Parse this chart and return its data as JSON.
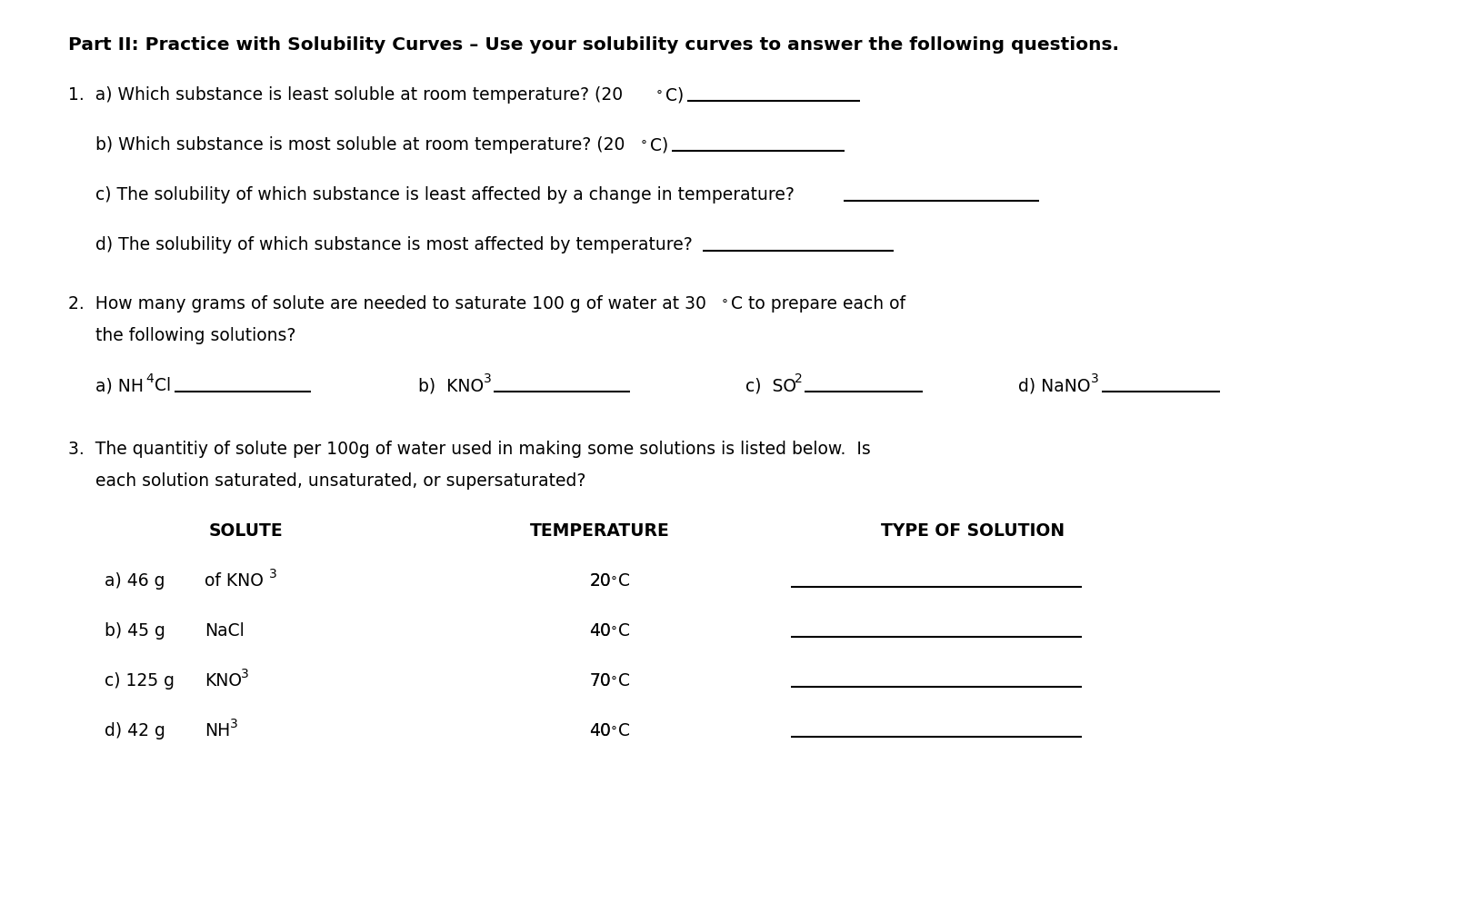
{
  "bg_color": "#ffffff",
  "title": "Part II: Practice with Solubility Curves – Use your solubility curves to answer the following questions.",
  "q1a": "1.  a) Which substance is least soluble at room temperature? (20",
  "q1b": "   b) Which substance is most soluble at room temperature? (20",
  "q1c": "   c) The solubility of which substance is least affected by a change in temperature?",
  "q1d": "   d) The solubility of which substance is most affected by temperature?",
  "q2_line1": "2.  How many grams of solute are needed to saturate 100 g of water at 30",
  "q2_line1b": "C to prepare each of",
  "q2_line2": "    the following solutions?",
  "q3_line1": "3.  The quantitiy of solute per 100g of water used in making some solutions is listed below.  Is",
  "q3_line2": "    each solution saturated, unsaturated, or supersaturated?",
  "col1_header": "SOLUTE",
  "col2_header": "TEMPERATURE",
  "col3_header": "TYPE OF SOLUTION",
  "font_size_title": 14.5,
  "font_size_body": 13.5,
  "font_size_sub": 10,
  "line_color": "#000000",
  "text_color": "#000000",
  "font_family": "DejaVu Sans"
}
